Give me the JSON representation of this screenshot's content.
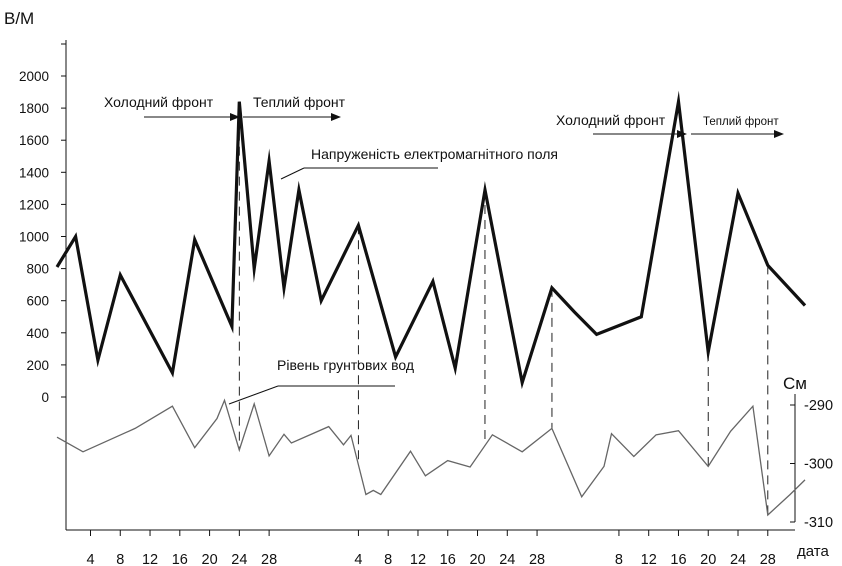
{
  "chart_data": {
    "type": "line",
    "left_axis": {
      "title": "В/М",
      "ticks": [
        "0",
        "200",
        "400",
        "600",
        "800",
        "1000",
        "1200",
        "1400",
        "1600",
        "1800",
        "2000"
      ],
      "ylim": [
        0,
        2000
      ]
    },
    "right_axis": {
      "title": "См",
      "ticks": [
        "-290",
        "-300",
        "-310"
      ],
      "ylim": [
        -310,
        -290
      ]
    },
    "x_axis": {
      "label": "дата",
      "ticks": [
        "4",
        "8",
        "12",
        "16",
        "20",
        "24",
        "28",
        "4",
        "8",
        "12",
        "16",
        "20",
        "24",
        "28",
        "8",
        "12",
        "16",
        "20",
        "24",
        "28"
      ],
      "tick_positions": [
        4,
        8,
        12,
        16,
        20,
        24,
        28,
        40,
        44,
        48,
        52,
        56,
        60,
        64,
        75,
        79,
        83,
        87,
        91,
        95
      ],
      "xlim": [
        -0.5,
        100
      ]
    },
    "series": [
      {
        "name": "Напруженість електромагнітного поля",
        "x": [
          -0.5,
          2,
          5,
          8,
          15,
          18,
          23,
          24,
          26,
          28,
          30,
          32,
          35,
          40,
          45,
          50,
          53,
          57,
          62,
          66,
          69,
          72,
          78,
          83,
          87,
          91,
          95,
          100
        ],
        "y": [
          810,
          1000,
          230,
          760,
          150,
          980,
          440,
          1840,
          800,
          1470,
          680,
          1290,
          600,
          1070,
          250,
          720,
          180,
          1290,
          90,
          680,
          530,
          390,
          500,
          1840,
          280,
          1270,
          820,
          570
        ]
      },
      {
        "name": "Рівень грунтових вод",
        "x": [
          -0.5,
          3,
          10,
          15,
          18,
          21,
          22,
          24,
          26,
          28,
          30,
          31,
          36,
          38,
          39,
          41,
          42,
          43,
          47,
          49,
          52,
          55,
          58,
          62,
          66,
          70,
          73,
          74,
          77,
          80,
          83,
          87,
          90,
          93,
          95,
          98,
          100
        ],
        "y": [
          -295.5,
          -298,
          -294,
          -290.2,
          -297.3,
          -292.3,
          -289.2,
          -297.7,
          -289.8,
          -298.7,
          -295,
          -296.5,
          -293.7,
          -296.8,
          -295.2,
          -305.3,
          -304.6,
          -305.3,
          -297.9,
          -302.1,
          -299.5,
          -300.6,
          -295.1,
          -298,
          -294,
          -305.7,
          -300.5,
          -294.9,
          -298.8,
          -295.1,
          -294.4,
          -300.5,
          -294.5,
          -290.2,
          -308.8,
          -305.3,
          -302.8
        ]
      }
    ],
    "drop_lines": [
      {
        "x": 24,
        "to": "Рівень грунтових вод"
      },
      {
        "x": 40,
        "to": "Рівень грунтових вод"
      },
      {
        "x": 57,
        "to": "Рівень грунтових вод"
      },
      {
        "x": 66,
        "to": "Рівень грунтових вод"
      },
      {
        "x": 87,
        "to": "Рівень грунтових вод"
      },
      {
        "x": 95,
        "to": "Рівень грунтових вод"
      }
    ],
    "annotations": [
      {
        "id": "cold-front-1",
        "text": "Холодний фронт"
      },
      {
        "id": "warm-front-1",
        "text": "Теплий фронт"
      },
      {
        "id": "cold-front-2",
        "text": "Холодний фронт"
      },
      {
        "id": "warm-front-2",
        "text": "Теплий фронт"
      },
      {
        "id": "field-label",
        "text": "Напруженість електромагнітного поля"
      },
      {
        "id": "water-label",
        "text": "Рівень грунтових вод"
      }
    ]
  },
  "colors": {
    "field_line": "#111111",
    "water_line": "#666666",
    "axis": "#111111",
    "drop_line": "#222222"
  }
}
